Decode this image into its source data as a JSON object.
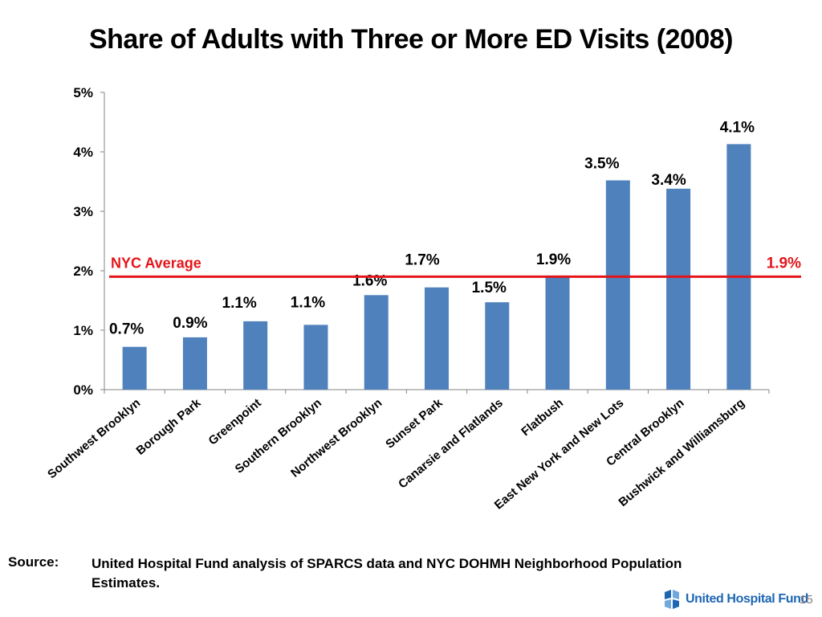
{
  "title": "Share of Adults with Three or More ED Visits (2008)",
  "chart_data": {
    "type": "bar",
    "title": "Share of Adults with Three or More ED Visits (2008)",
    "categories": [
      "Southwest Brooklyn",
      "Borough Park",
      "Greenpoint",
      "Southern Brooklyn",
      "Northwest Brooklyn",
      "Sunset Park",
      "Canarsie and Flatlands",
      "Flatbush",
      "East New York and New Lots",
      "Central Brooklyn",
      "Bushwick and Williamsburg"
    ],
    "values": [
      0.7,
      0.9,
      1.1,
      1.1,
      1.6,
      1.7,
      1.5,
      1.9,
      3.5,
      3.4,
      4.1
    ],
    "bar_heights": [
      0.72,
      0.88,
      1.15,
      1.09,
      1.59,
      1.72,
      1.47,
      1.92,
      3.52,
      3.38,
      4.13
    ],
    "value_labels": [
      "0.7%",
      "0.9%",
      "1.1%",
      "1.1%",
      "1.6%",
      "1.7%",
      "1.5%",
      "1.9%",
      "3.5%",
      "3.4%",
      "4.1%"
    ],
    "y_ticks": [
      0,
      1,
      2,
      3,
      4,
      5
    ],
    "y_tick_labels": [
      "0%",
      "1%",
      "2%",
      "3%",
      "4%",
      "5%"
    ],
    "ylim": [
      0,
      5
    ],
    "xlabel": "",
    "ylabel": "",
    "bar_color": "#4f81bd",
    "reference_line": {
      "label": "NYC Average",
      "value": 1.9,
      "value_label": "1.9%",
      "color": "#e3151a"
    }
  },
  "source": {
    "label": "Source:",
    "text": "United Hospital Fund analysis of SPARCS data and NYC DOHMH Neighborhood Population Estimates."
  },
  "footer": {
    "logo_text": "United Hospital Fund",
    "logo_icon": "uhf-logo-icon",
    "page_number": "15"
  }
}
